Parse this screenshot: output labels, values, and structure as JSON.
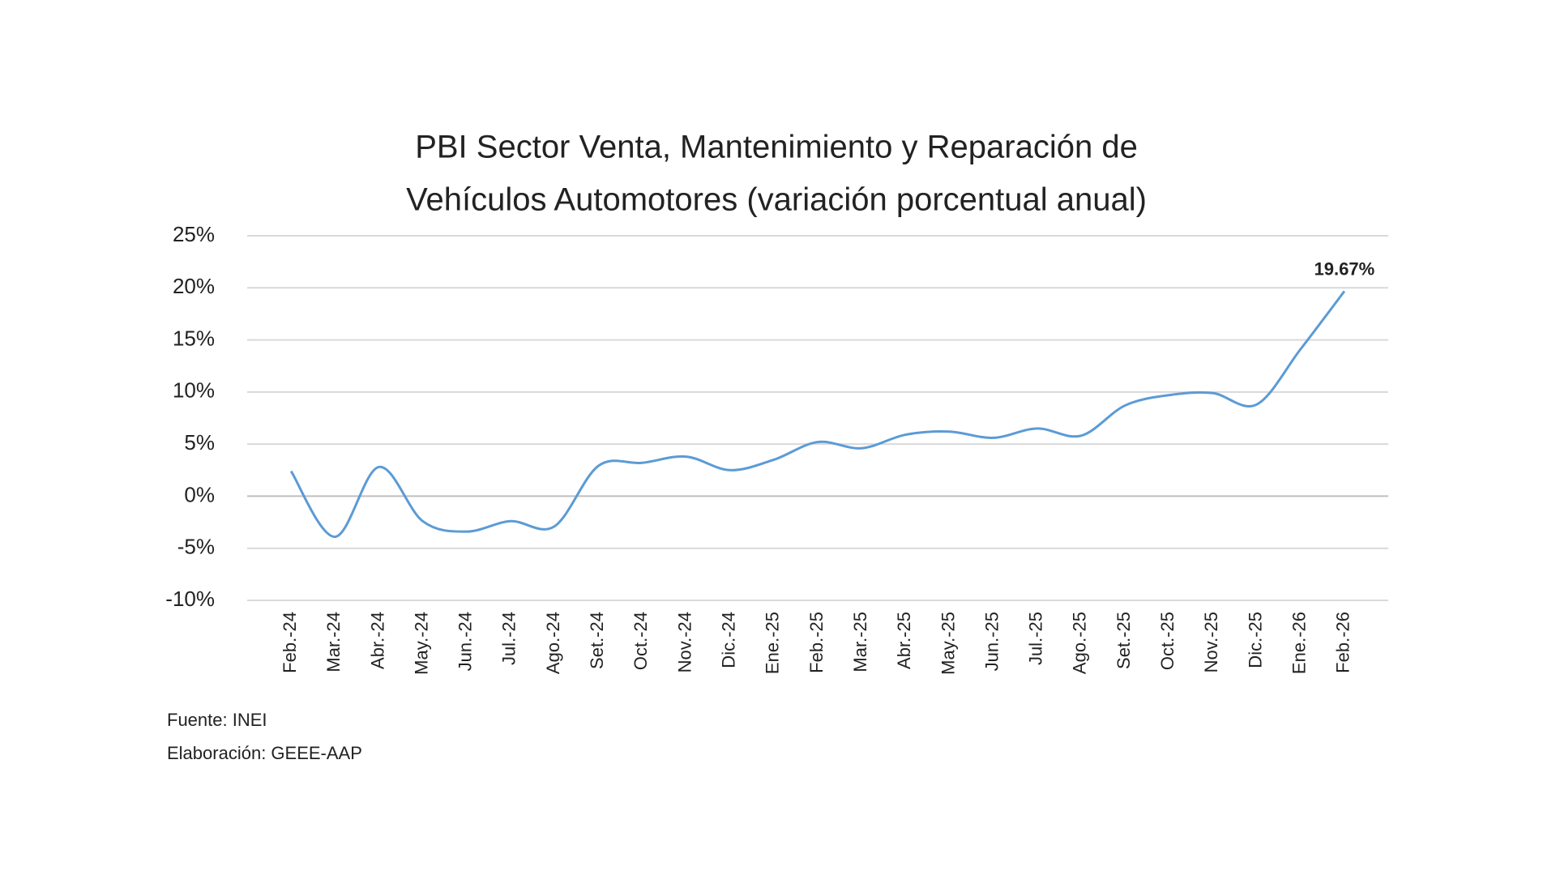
{
  "chart_data": {
    "type": "line",
    "title": [
      "PBI Sector Venta, Mantenimiento y Reparación de",
      "Vehículos Automotores (variación porcentual anual)"
    ],
    "categories": [
      "Feb.-24",
      "Mar.-24",
      "Abr.-24",
      "May.-24",
      "Jun.-24",
      "Jul.-24",
      "Ago.-24",
      "Set.-24",
      "Oct.-24",
      "Nov.-24",
      "Dic.-24",
      "Ene.-25",
      "Feb.-25",
      "Mar.-25",
      "Abr.-25",
      "May.-25",
      "Jun.-25",
      "Jul.-25",
      "Ago.-25",
      "Set.-25",
      "Oct.-25",
      "Nov.-25",
      "Dic.-25",
      "Ene.-26",
      "Feb.-26"
    ],
    "values": [
      2.4,
      -3.9,
      2.8,
      -2.4,
      -3.4,
      -2.4,
      -2.9,
      2.9,
      3.2,
      3.8,
      2.5,
      3.5,
      5.2,
      4.6,
      5.9,
      6.2,
      5.6,
      6.5,
      5.8,
      8.7,
      9.7,
      9.9,
      8.8,
      14.1,
      19.67
    ],
    "value_labels": [
      null,
      null,
      null,
      null,
      null,
      null,
      null,
      null,
      null,
      null,
      null,
      null,
      null,
      null,
      null,
      null,
      null,
      null,
      null,
      null,
      null,
      null,
      null,
      null,
      "19.67%"
    ],
    "color": "#5b9bd5",
    "ylim": [
      -10,
      25
    ],
    "yticks": [
      {
        "value": -10,
        "label": "-10%"
      },
      {
        "value": -5,
        "label": "-5%"
      },
      {
        "value": 0,
        "label": "0%"
      },
      {
        "value": 5,
        "label": "5%"
      },
      {
        "value": 10,
        "label": "10%"
      },
      {
        "value": 15,
        "label": "15%"
      },
      {
        "value": 20,
        "label": "20%"
      },
      {
        "value": 25,
        "label": "25%"
      }
    ],
    "grid": true,
    "source": "Fuente: INEI",
    "credit": "Elaboración: GEEE-AAP"
  }
}
